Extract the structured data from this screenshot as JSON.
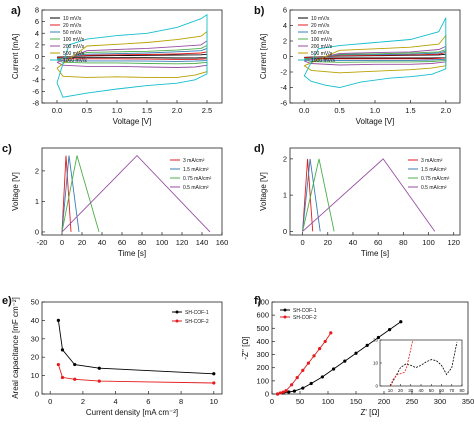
{
  "chart_data": [
    {
      "panel": "a)",
      "type": "line",
      "xlabel": "Voltage [V]",
      "ylabel": "Current [mA]",
      "xlim": [
        -0.25,
        2.75
      ],
      "ylim": [
        -8,
        8
      ],
      "xticks": [
        0.0,
        0.5,
        1.0,
        1.5,
        2.0,
        2.5
      ],
      "yticks": [
        -8,
        -6,
        -4,
        -2,
        0,
        2,
        4,
        6,
        8
      ],
      "legend_position": "top-left",
      "series": [
        {
          "name": "10 mV/s",
          "color": "#000000",
          "x": [
            0,
            0.5,
            1.0,
            1.5,
            2.0,
            2.4,
            2.5,
            2.5,
            2.3,
            2.0,
            1.5,
            1.0,
            0.5,
            0.1,
            0
          ],
          "y": [
            -0.1,
            0.1,
            0.15,
            0.2,
            0.25,
            0.3,
            0.4,
            -0.2,
            -0.25,
            -0.25,
            -0.2,
            -0.2,
            -0.2,
            -0.2,
            -0.1
          ]
        },
        {
          "name": "20 mV/s",
          "color": "#e41a1c",
          "x": [
            0,
            0.5,
            1.0,
            1.5,
            2.0,
            2.4,
            2.5,
            2.5,
            2.3,
            2.0,
            1.5,
            1.0,
            0.5,
            0.1,
            0
          ],
          "y": [
            -0.2,
            0.2,
            0.3,
            0.35,
            0.45,
            0.6,
            0.8,
            -0.4,
            -0.5,
            -0.5,
            -0.45,
            -0.4,
            -0.4,
            -0.4,
            -0.2
          ]
        },
        {
          "name": "50 mV/s",
          "color": "#377eb8",
          "x": [
            0,
            0.5,
            1.0,
            1.5,
            2.0,
            2.4,
            2.5,
            2.5,
            2.3,
            2.0,
            1.5,
            1.0,
            0.5,
            0.1,
            0
          ],
          "y": [
            -0.4,
            0.4,
            0.5,
            0.6,
            0.8,
            1.0,
            1.4,
            -0.7,
            -0.8,
            -0.85,
            -0.8,
            -0.75,
            -0.75,
            -0.7,
            -0.4
          ]
        },
        {
          "name": "100 mV/s",
          "color": "#4daf4a",
          "x": [
            0,
            0.5,
            1.0,
            1.5,
            2.0,
            2.4,
            2.5,
            2.5,
            2.3,
            2.0,
            1.5,
            1.0,
            0.5,
            0.1,
            0
          ],
          "y": [
            -0.6,
            0.7,
            0.8,
            0.9,
            1.1,
            1.4,
            1.9,
            -1.0,
            -1.2,
            -1.25,
            -1.2,
            -1.1,
            -1.1,
            -1.0,
            -0.6
          ]
        },
        {
          "name": "200 mV/s",
          "color": "#984ea3",
          "x": [
            0,
            0.5,
            1.0,
            1.5,
            2.0,
            2.4,
            2.5,
            2.5,
            2.3,
            2.0,
            1.5,
            1.0,
            0.5,
            0.1,
            0
          ],
          "y": [
            -1.0,
            1.0,
            1.2,
            1.4,
            1.7,
            2.0,
            2.7,
            -1.5,
            -1.8,
            -1.9,
            -1.8,
            -1.7,
            -1.7,
            -1.5,
            -1.0
          ]
        },
        {
          "name": "500 mV/s",
          "color": "#b8a000",
          "x": [
            0,
            0.5,
            1.0,
            1.5,
            2.0,
            2.4,
            2.5,
            2.5,
            2.3,
            2.0,
            1.5,
            1.0,
            0.5,
            0.1,
            0
          ],
          "y": [
            -2.0,
            1.8,
            2.1,
            2.4,
            2.9,
            3.5,
            4.3,
            -2.6,
            -3.2,
            -3.6,
            -3.6,
            -3.5,
            -3.6,
            -3.4,
            -2.0
          ]
        },
        {
          "name": "1000 mV/s",
          "color": "#17becf",
          "x": [
            0,
            0.2,
            0.5,
            1.0,
            1.5,
            2.0,
            2.4,
            2.5,
            2.5,
            2.3,
            2.0,
            1.5,
            1.0,
            0.5,
            0.1,
            0
          ],
          "y": [
            -4.5,
            2.0,
            3.0,
            3.6,
            4.0,
            5.0,
            6.5,
            7.2,
            -3.0,
            -4.0,
            -4.6,
            -5.0,
            -5.6,
            -6.3,
            -7.0,
            -4.5
          ]
        }
      ]
    },
    {
      "panel": "b)",
      "type": "line",
      "xlabel": "Voltage [V]",
      "ylabel": "Current [mA]",
      "xlim": [
        -0.2,
        2.2
      ],
      "ylim": [
        -6,
        6
      ],
      "xticks": [
        0.0,
        0.5,
        1.0,
        1.5,
        2.0
      ],
      "yticks": [
        -6,
        -4,
        -2,
        0,
        2,
        4,
        6
      ],
      "legend_position": "top-left",
      "series": [
        {
          "name": "10 mV/s",
          "color": "#000000",
          "x": [
            0,
            0.5,
            1.0,
            1.5,
            1.9,
            2.0,
            2.0,
            1.8,
            1.5,
            1.0,
            0.5,
            0.1,
            0
          ],
          "y": [
            -0.1,
            0.05,
            0.1,
            0.15,
            0.2,
            0.3,
            -0.15,
            -0.2,
            -0.2,
            -0.2,
            -0.2,
            -0.2,
            -0.1
          ]
        },
        {
          "name": "20 mV/s",
          "color": "#e41a1c",
          "x": [
            0,
            0.5,
            1.0,
            1.5,
            1.9,
            2.0,
            2.0,
            1.8,
            1.5,
            1.0,
            0.5,
            0.1,
            0
          ],
          "y": [
            -0.15,
            0.1,
            0.15,
            0.2,
            0.3,
            0.5,
            -0.2,
            -0.3,
            -0.3,
            -0.3,
            -0.3,
            -0.3,
            -0.15
          ]
        },
        {
          "name": "50 mV/s",
          "color": "#377eb8",
          "x": [
            0,
            0.5,
            1.0,
            1.5,
            1.9,
            2.0,
            2.0,
            1.8,
            1.5,
            1.0,
            0.5,
            0.1,
            0
          ],
          "y": [
            -0.3,
            0.2,
            0.25,
            0.3,
            0.45,
            0.7,
            -0.35,
            -0.45,
            -0.5,
            -0.5,
            -0.5,
            -0.45,
            -0.3
          ]
        },
        {
          "name": "100 mV/s",
          "color": "#4daf4a",
          "x": [
            0,
            0.5,
            1.0,
            1.5,
            1.9,
            2.0,
            2.0,
            1.8,
            1.5,
            1.0,
            0.5,
            0.1,
            0
          ],
          "y": [
            -0.4,
            0.3,
            0.35,
            0.45,
            0.6,
            0.9,
            -0.5,
            -0.65,
            -0.7,
            -0.7,
            -0.75,
            -0.65,
            -0.4
          ]
        },
        {
          "name": "200 mV/s",
          "color": "#984ea3",
          "x": [
            0,
            0.5,
            1.0,
            1.5,
            1.9,
            2.0,
            2.0,
            1.8,
            1.5,
            1.0,
            0.5,
            0.1,
            0
          ],
          "y": [
            -0.6,
            0.4,
            0.5,
            0.6,
            0.9,
            1.3,
            -0.7,
            -0.9,
            -1.0,
            -1.0,
            -1.1,
            -0.9,
            -0.6
          ]
        },
        {
          "name": "500 mV/s",
          "color": "#b8a000",
          "x": [
            0,
            0.5,
            1.0,
            1.5,
            1.9,
            2.0,
            2.0,
            1.8,
            1.5,
            1.0,
            0.5,
            0.1,
            0
          ],
          "y": [
            -1.2,
            0.8,
            1.0,
            1.2,
            1.6,
            2.7,
            -1.2,
            -1.5,
            -1.7,
            -1.9,
            -2.1,
            -1.8,
            -1.2
          ]
        },
        {
          "name": "1000 mV/s",
          "color": "#17becf",
          "x": [
            0,
            0.2,
            0.5,
            1.0,
            1.5,
            1.9,
            2.0,
            2.0,
            1.8,
            1.5,
            1.2,
            0.8,
            0.5,
            0.3,
            0.1,
            0
          ],
          "y": [
            -2.5,
            1.0,
            1.4,
            1.8,
            2.2,
            3.2,
            5.0,
            -1.6,
            -2.3,
            -2.6,
            -2.8,
            -3.3,
            -4.0,
            -3.7,
            -3.2,
            -2.5
          ]
        }
      ]
    },
    {
      "panel": "c)",
      "type": "line",
      "xlabel": "Time [s]",
      "ylabel": "Voltage [V]",
      "xlim": [
        -20,
        160
      ],
      "ylim": [
        -0.1,
        2.75
      ],
      "xticks": [
        -20,
        0,
        20,
        40,
        60,
        80,
        100,
        120,
        140,
        160
      ],
      "yticks": [
        0,
        1,
        2
      ],
      "legend_position": "top-right",
      "series": [
        {
          "name": "3 mA/cm²",
          "color": "#e41a1c",
          "x": [
            0,
            4,
            9
          ],
          "y": [
            0,
            2.5,
            0
          ]
        },
        {
          "name": "1.5 mA/cm²",
          "color": "#377eb8",
          "x": [
            0,
            7,
            17
          ],
          "y": [
            0,
            2.5,
            0
          ]
        },
        {
          "name": "0.75 mA/cm²",
          "color": "#4daf4a",
          "x": [
            0,
            15,
            37
          ],
          "y": [
            0,
            2.5,
            0
          ]
        },
        {
          "name": "0.5 mA/cm²",
          "color": "#984ea3",
          "x": [
            0,
            75,
            148
          ],
          "y": [
            0,
            2.5,
            0
          ]
        }
      ]
    },
    {
      "panel": "d)",
      "type": "line",
      "xlabel": "Time [s]",
      "ylabel": "Voltage [V]",
      "xlim": [
        -10,
        125
      ],
      "ylim": [
        -0.1,
        2.3
      ],
      "xticks": [
        0,
        20,
        40,
        60,
        80,
        100,
        120
      ],
      "yticks": [
        0,
        1,
        2
      ],
      "legend_position": "top-right",
      "series": [
        {
          "name": "3 mA/cm²",
          "color": "#e41a1c",
          "x": [
            0,
            4,
            8
          ],
          "y": [
            0,
            2.0,
            0
          ]
        },
        {
          "name": "1.5 mA/cm²",
          "color": "#377eb8",
          "x": [
            0,
            6,
            14
          ],
          "y": [
            0,
            2.0,
            0
          ]
        },
        {
          "name": "0.75 mA/cm²",
          "color": "#4daf4a",
          "x": [
            0,
            13,
            25
          ],
          "y": [
            0,
            2.0,
            0
          ]
        },
        {
          "name": "0.5 mA/cm²",
          "color": "#984ea3",
          "x": [
            0,
            64,
            105
          ],
          "y": [
            0,
            2.0,
            0
          ]
        }
      ]
    },
    {
      "panel": "e)",
      "type": "line",
      "xlabel": "Current density [mA cm⁻²]",
      "ylabel": "Areal capacitance [mF cm⁻²]",
      "xlim": [
        -0.5,
        10.5
      ],
      "ylim": [
        0,
        50
      ],
      "xticks": [
        0,
        2,
        4,
        6,
        8,
        10
      ],
      "yticks": [
        0,
        10,
        20,
        30,
        40,
        50
      ],
      "legend_position": "top-right",
      "series": [
        {
          "name": "SH-COF-1",
          "color": "#000000",
          "x": [
            0.5,
            0.75,
            1.5,
            3,
            10
          ],
          "y": [
            40,
            24,
            16,
            14,
            11
          ]
        },
        {
          "name": "SH-COF-2",
          "color": "#e41a1c",
          "x": [
            0.5,
            0.75,
            1.5,
            3,
            10
          ],
          "y": [
            16,
            9,
            8,
            7,
            6
          ]
        }
      ]
    },
    {
      "panel": "f)",
      "type": "scatter",
      "xlabel": "Z' [Ω]",
      "ylabel": "-Z'' [Ω]",
      "xlim": [
        0,
        350
      ],
      "ylim": [
        0,
        700
      ],
      "xticks": [
        0,
        50,
        100,
        150,
        200,
        250,
        300,
        350
      ],
      "yticks": [
        0,
        100,
        200,
        300,
        400,
        500,
        600,
        700
      ],
      "legend_position": "top-left",
      "series": [
        {
          "name": "SH-COF-1",
          "color": "#000000",
          "x": [
            10,
            20,
            30,
            40,
            55,
            70,
            90,
            110,
            130,
            150,
            170,
            190,
            210,
            230
          ],
          "y": [
            0,
            8,
            15,
            22,
            45,
            80,
            130,
            190,
            250,
            310,
            370,
            430,
            490,
            550
          ]
        },
        {
          "name": "SH-COF-2",
          "color": "#e41a1c",
          "x": [
            10,
            15,
            20,
            25,
            35,
            45,
            55,
            65,
            75,
            85,
            95,
            105
          ],
          "y": [
            0,
            8,
            14,
            25,
            70,
            125,
            180,
            235,
            290,
            345,
            400,
            465
          ]
        }
      ],
      "inset": {
        "xlim": [
          0,
          80
        ],
        "ylim": [
          0,
          20
        ],
        "xticks": [
          10,
          20,
          30,
          40,
          50,
          60,
          70,
          80
        ],
        "yticks": [
          0,
          10,
          20
        ],
        "series": [
          {
            "name": "SH-COF-1",
            "color": "#000000",
            "x": [
              10,
              15,
              20,
              25,
              30,
              35,
              40,
              45,
              50,
              55,
              60,
              65,
              70,
              75
            ],
            "y": [
              0,
              4,
              8,
              9.5,
              9,
              8,
              9,
              10.5,
              11.5,
              11,
              9,
              5,
              8,
              19
            ]
          },
          {
            "name": "SH-COF-2",
            "color": "#e41a1c",
            "x": [
              10,
              13,
              17,
              21,
              24,
              26,
              28,
              30,
              32
            ],
            "y": [
              0,
              3,
              5,
              5.5,
              6,
              8,
              12,
              16,
              20
            ]
          }
        ]
      }
    }
  ]
}
